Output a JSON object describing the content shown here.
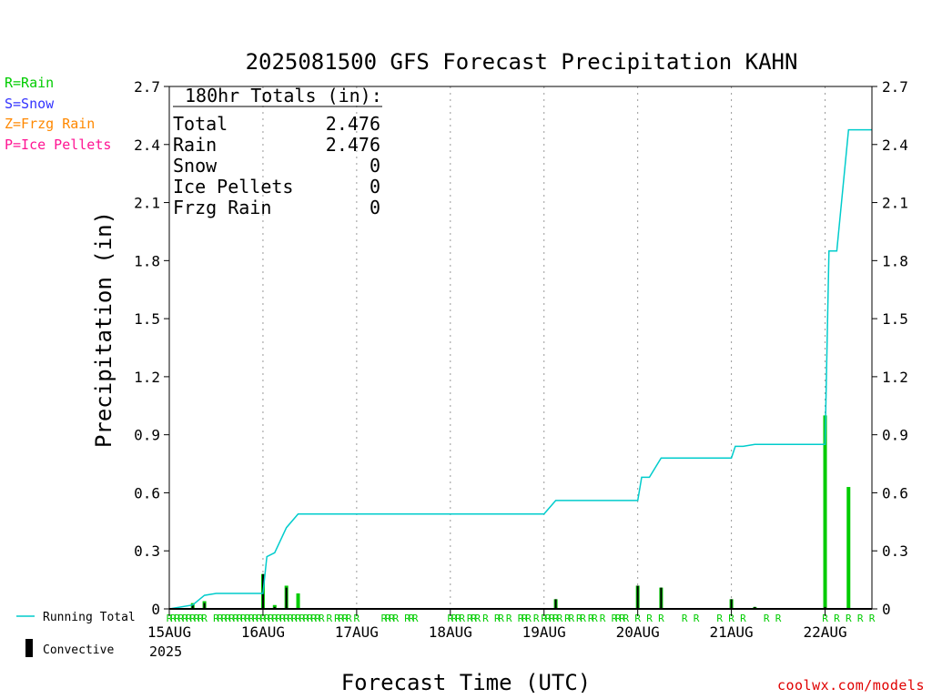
{
  "ptype_legend": [
    {
      "text": "R=Rain",
      "color": "#00cc00"
    },
    {
      "text": "S=Snow",
      "color": "#3333ff"
    },
    {
      "text": "Z=Frzg Rain",
      "color": "#ff8800"
    },
    {
      "text": "P=Ice Pellets",
      "color": "#ff1493"
    }
  ],
  "site": "coolwx.com/models",
  "colors": {
    "rain": "#00cc00",
    "convective": "#000000",
    "running_total": "#00cccc",
    "grid": "#999999"
  },
  "chart_data": {
    "type": "bar",
    "title": "2025081500 GFS Forecast Precipitation KAHN",
    "xlabel": "Forecast Time (UTC)",
    "ylabel": "Precipitation (in)",
    "ylim": [
      0,
      2.7
    ],
    "yticks": [
      "0",
      "0.3",
      "0.6",
      "0.9",
      "1.2",
      "1.5",
      "1.8",
      "2.1",
      "2.4",
      "2.7"
    ],
    "xlim": [
      "2025-08-15T00",
      "2025-08-22T12"
    ],
    "xticks": [
      "15AUG",
      "16AUG",
      "17AUG",
      "18AUG",
      "19AUG",
      "20AUG",
      "21AUG",
      "22AUG"
    ],
    "year_label": "2025",
    "grid": "vertical dotted at day boundaries",
    "totals_box": {
      "title": "180hr Totals (in):",
      "rows": [
        {
          "label": "Total",
          "value": "2.476"
        },
        {
          "label": "Rain",
          "value": "2.476"
        },
        {
          "label": "Snow",
          "value": "0"
        },
        {
          "label": "Ice Pellets",
          "value": "0"
        },
        {
          "label": "Frzg Rain",
          "value": "0"
        }
      ]
    },
    "legend": [
      {
        "name": "Running Total",
        "kind": "line"
      },
      {
        "name": "Convective",
        "kind": "bar"
      }
    ],
    "bars": {
      "name": "Rain",
      "x": [
        "2025-08-15T06",
        "2025-08-15T09",
        "2025-08-16T00",
        "2025-08-16T03",
        "2025-08-16T06",
        "2025-08-16T09",
        "2025-08-19T03",
        "2025-08-20T00",
        "2025-08-20T06",
        "2025-08-21T00",
        "2025-08-21T06",
        "2025-08-22T00",
        "2025-08-22T06"
      ],
      "values": [
        0.03,
        0.04,
        0.18,
        0.02,
        0.12,
        0.08,
        0.05,
        0.12,
        0.11,
        0.05,
        0.01,
        1.0,
        0.63
      ]
    },
    "convective": {
      "name": "Convective",
      "x": [
        "2025-08-15T06",
        "2025-08-15T09",
        "2025-08-16T00",
        "2025-08-16T03",
        "2025-08-16T06",
        "2025-08-19T03",
        "2025-08-20T00",
        "2025-08-20T06",
        "2025-08-21T00",
        "2025-08-21T06",
        "2025-08-22T00"
      ],
      "values": [
        0.02,
        0.03,
        0.18,
        0.01,
        0.11,
        0.05,
        0.12,
        0.11,
        0.05,
        0.01,
        0.01
      ]
    },
    "running_total": {
      "name": "Running Total",
      "x": [
        "2025-08-15T00",
        "2025-08-15T06",
        "2025-08-15T09",
        "2025-08-15T12",
        "2025-08-16T00",
        "2025-08-16T01",
        "2025-08-16T03",
        "2025-08-16T06",
        "2025-08-16T09",
        "2025-08-19T00",
        "2025-08-19T03",
        "2025-08-19T09",
        "2025-08-20T00",
        "2025-08-20T01",
        "2025-08-20T03",
        "2025-08-20T06",
        "2025-08-21T00",
        "2025-08-21T01",
        "2025-08-21T03",
        "2025-08-21T06",
        "2025-08-22T00",
        "2025-08-22T01",
        "2025-08-22T03",
        "2025-08-22T06",
        "2025-08-22T12"
      ],
      "values": [
        0.0,
        0.02,
        0.07,
        0.08,
        0.08,
        0.27,
        0.29,
        0.42,
        0.49,
        0.49,
        0.56,
        0.56,
        0.56,
        0.68,
        0.68,
        0.78,
        0.78,
        0.84,
        0.84,
        0.85,
        0.85,
        1.85,
        1.85,
        2.476,
        2.476
      ]
    },
    "ptype_marks": {
      "text": "R",
      "x": [
        "2025-08-15T00",
        "2025-08-15T01",
        "2025-08-15T02",
        "2025-08-15T03",
        "2025-08-15T04",
        "2025-08-15T05",
        "2025-08-15T06",
        "2025-08-15T07",
        "2025-08-15T08",
        "2025-08-15T09",
        "2025-08-15T12",
        "2025-08-15T13",
        "2025-08-15T14",
        "2025-08-15T15",
        "2025-08-15T16",
        "2025-08-15T17",
        "2025-08-15T18",
        "2025-08-15T19",
        "2025-08-15T20",
        "2025-08-15T21",
        "2025-08-15T22",
        "2025-08-15T23",
        "2025-08-16T00",
        "2025-08-16T01",
        "2025-08-16T02",
        "2025-08-16T03",
        "2025-08-16T04",
        "2025-08-16T05",
        "2025-08-16T06",
        "2025-08-16T07",
        "2025-08-16T08",
        "2025-08-16T09",
        "2025-08-16T10",
        "2025-08-16T11",
        "2025-08-16T12",
        "2025-08-16T13",
        "2025-08-16T14",
        "2025-08-16T15",
        "2025-08-16T17",
        "2025-08-16T19",
        "2025-08-16T20",
        "2025-08-16T21",
        "2025-08-16T22",
        "2025-08-17T00",
        "2025-08-17T07",
        "2025-08-17T08",
        "2025-08-17T09",
        "2025-08-17T10",
        "2025-08-17T13",
        "2025-08-17T14",
        "2025-08-17T15",
        "2025-08-18T00",
        "2025-08-18T01",
        "2025-08-18T02",
        "2025-08-18T03",
        "2025-08-18T05",
        "2025-08-18T06",
        "2025-08-18T07",
        "2025-08-18T09",
        "2025-08-18T12",
        "2025-08-18T13",
        "2025-08-18T15",
        "2025-08-18T18",
        "2025-08-18T19",
        "2025-08-18T20",
        "2025-08-18T22",
        "2025-08-19T00",
        "2025-08-19T01",
        "2025-08-19T02",
        "2025-08-19T03",
        "2025-08-19T04",
        "2025-08-19T06",
        "2025-08-19T07",
        "2025-08-19T09",
        "2025-08-19T10",
        "2025-08-19T12",
        "2025-08-19T13",
        "2025-08-19T15",
        "2025-08-19T18",
        "2025-08-19T19",
        "2025-08-19T20",
        "2025-08-19T21",
        "2025-08-20T00",
        "2025-08-20T03",
        "2025-08-20T06",
        "2025-08-20T12",
        "2025-08-20T15",
        "2025-08-20T21",
        "2025-08-21T00",
        "2025-08-21T03",
        "2025-08-21T09",
        "2025-08-21T12",
        "2025-08-22T00",
        "2025-08-22T03",
        "2025-08-22T06",
        "2025-08-22T09",
        "2025-08-22T12"
      ]
    }
  }
}
